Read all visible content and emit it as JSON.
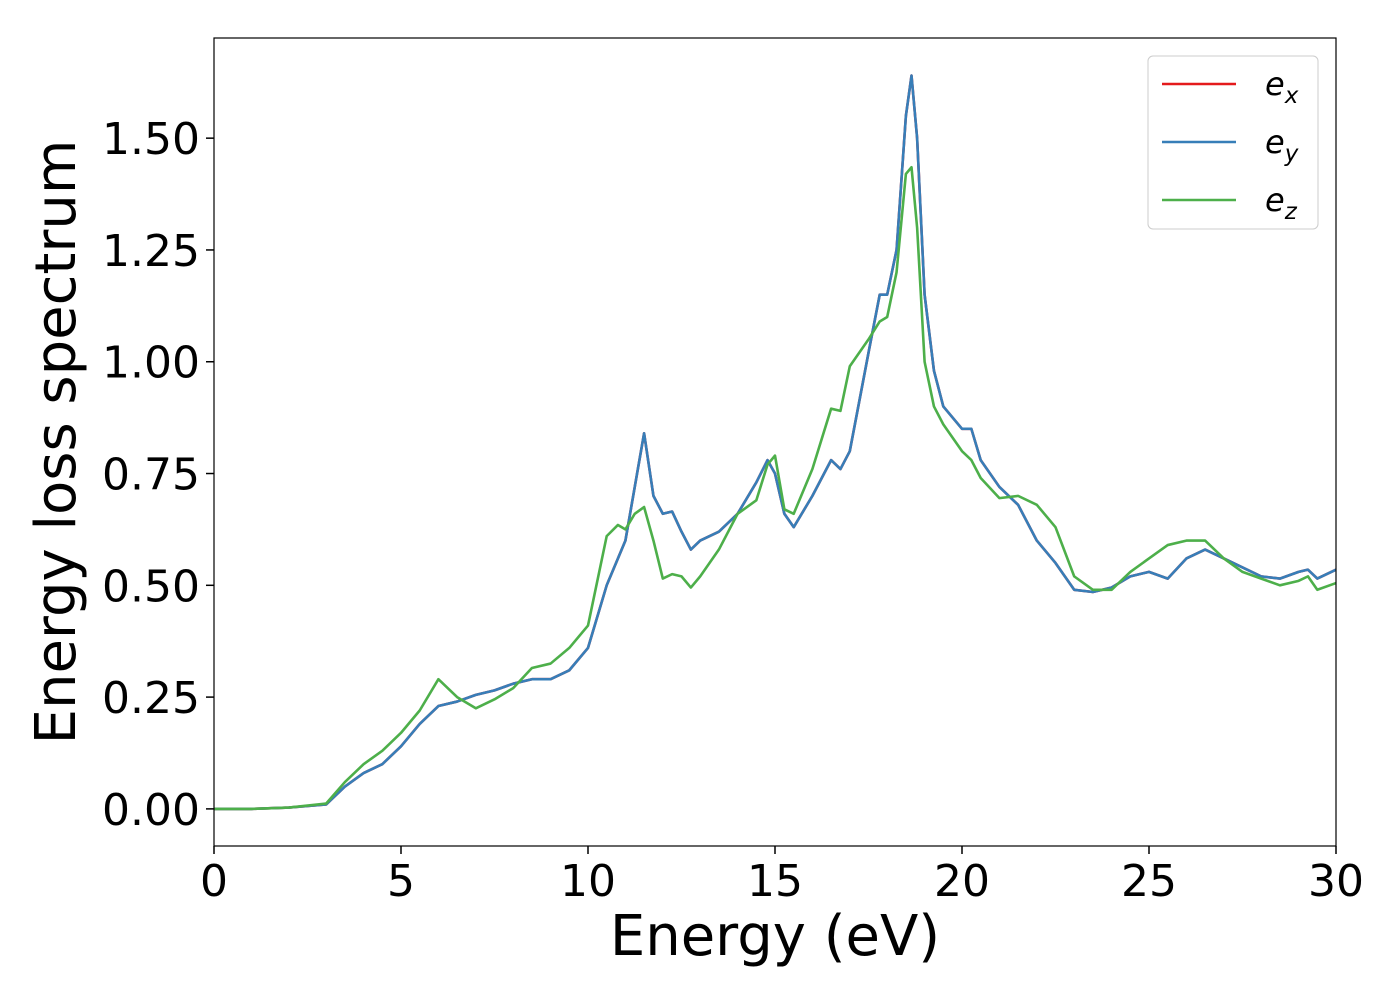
{
  "chart_data": {
    "type": "line",
    "xlabel": "Energy (eV)",
    "ylabel": "Energy loss spectrum",
    "x": [
      0,
      1,
      2,
      3,
      3.5,
      4,
      4.5,
      5,
      5.5,
      6,
      6.5,
      7,
      7.5,
      8,
      8.5,
      9,
      9.5,
      10,
      10.5,
      10.8,
      11,
      11.25,
      11.5,
      11.75,
      12,
      12.25,
      12.5,
      12.75,
      13,
      13.5,
      14,
      14.5,
      14.8,
      15,
      15.25,
      15.5,
      16,
      16.5,
      16.75,
      17,
      17.5,
      17.8,
      18,
      18.25,
      18.5,
      18.65,
      18.8,
      19,
      19.25,
      19.5,
      20,
      20.25,
      20.5,
      21,
      21.5,
      22,
      22.5,
      23,
      23.5,
      24,
      24.5,
      25,
      25.5,
      26,
      26.5,
      27,
      27.5,
      28,
      28.5,
      29,
      29.25,
      29.5,
      30
    ],
    "series": [
      {
        "name": "ex",
        "color": "#e41a1c",
        "values": [
          0,
          0,
          0.003,
          0.01,
          0.05,
          0.08,
          0.1,
          0.14,
          0.19,
          0.23,
          0.24,
          0.255,
          0.265,
          0.28,
          0.29,
          0.29,
          0.31,
          0.36,
          0.5,
          0.56,
          0.6,
          0.72,
          0.84,
          0.7,
          0.66,
          0.665,
          0.62,
          0.58,
          0.6,
          0.62,
          0.66,
          0.73,
          0.78,
          0.75,
          0.66,
          0.63,
          0.7,
          0.78,
          0.76,
          0.8,
          1.02,
          1.15,
          1.15,
          1.25,
          1.55,
          1.64,
          1.5,
          1.15,
          0.98,
          0.9,
          0.85,
          0.85,
          0.78,
          0.72,
          0.68,
          0.6,
          0.55,
          0.49,
          0.485,
          0.495,
          0.52,
          0.53,
          0.515,
          0.56,
          0.58,
          0.56,
          0.54,
          0.52,
          0.515,
          0.53,
          0.535,
          0.515,
          0.535
        ]
      },
      {
        "name": "ey",
        "color": "#377eb8",
        "values": [
          0,
          0,
          0.003,
          0.01,
          0.05,
          0.08,
          0.1,
          0.14,
          0.19,
          0.23,
          0.24,
          0.255,
          0.265,
          0.28,
          0.29,
          0.29,
          0.31,
          0.36,
          0.5,
          0.56,
          0.6,
          0.72,
          0.84,
          0.7,
          0.66,
          0.665,
          0.62,
          0.58,
          0.6,
          0.62,
          0.66,
          0.73,
          0.78,
          0.75,
          0.66,
          0.63,
          0.7,
          0.78,
          0.76,
          0.8,
          1.02,
          1.15,
          1.15,
          1.25,
          1.55,
          1.64,
          1.5,
          1.15,
          0.98,
          0.9,
          0.85,
          0.85,
          0.78,
          0.72,
          0.68,
          0.6,
          0.55,
          0.49,
          0.485,
          0.495,
          0.52,
          0.53,
          0.515,
          0.56,
          0.58,
          0.56,
          0.54,
          0.52,
          0.515,
          0.53,
          0.535,
          0.515,
          0.535
        ]
      },
      {
        "name": "ez",
        "color": "#4daf4a",
        "values": [
          0,
          0,
          0.003,
          0.012,
          0.06,
          0.1,
          0.13,
          0.17,
          0.22,
          0.29,
          0.25,
          0.225,
          0.245,
          0.27,
          0.315,
          0.325,
          0.36,
          0.41,
          0.61,
          0.635,
          0.625,
          0.66,
          0.675,
          0.6,
          0.515,
          0.525,
          0.52,
          0.495,
          0.52,
          0.58,
          0.66,
          0.69,
          0.77,
          0.79,
          0.67,
          0.66,
          0.76,
          0.895,
          0.89,
          0.99,
          1.05,
          1.09,
          1.1,
          1.2,
          1.42,
          1.435,
          1.3,
          1.0,
          0.9,
          0.86,
          0.8,
          0.78,
          0.74,
          0.695,
          0.7,
          0.68,
          0.63,
          0.52,
          0.49,
          0.49,
          0.53,
          0.56,
          0.59,
          0.6,
          0.6,
          0.56,
          0.53,
          0.515,
          0.5,
          0.51,
          0.52,
          0.49,
          0.505
        ]
      }
    ],
    "xlim": [
      0,
      30
    ],
    "xticks": [
      0,
      5,
      10,
      15,
      20,
      25,
      30
    ],
    "ylim": [
      -0.083,
      1.724
    ],
    "yticks": [
      {
        "value": 0,
        "label": "0.00"
      },
      {
        "value": 0.25,
        "label": "0.25"
      },
      {
        "value": 0.5,
        "label": "0.50"
      },
      {
        "value": 0.75,
        "label": "0.75"
      },
      {
        "value": 1.0,
        "label": "1.00"
      },
      {
        "value": 1.25,
        "label": "1.25"
      },
      {
        "value": 1.5,
        "label": "1.50"
      }
    ],
    "legend": "upper right"
  }
}
